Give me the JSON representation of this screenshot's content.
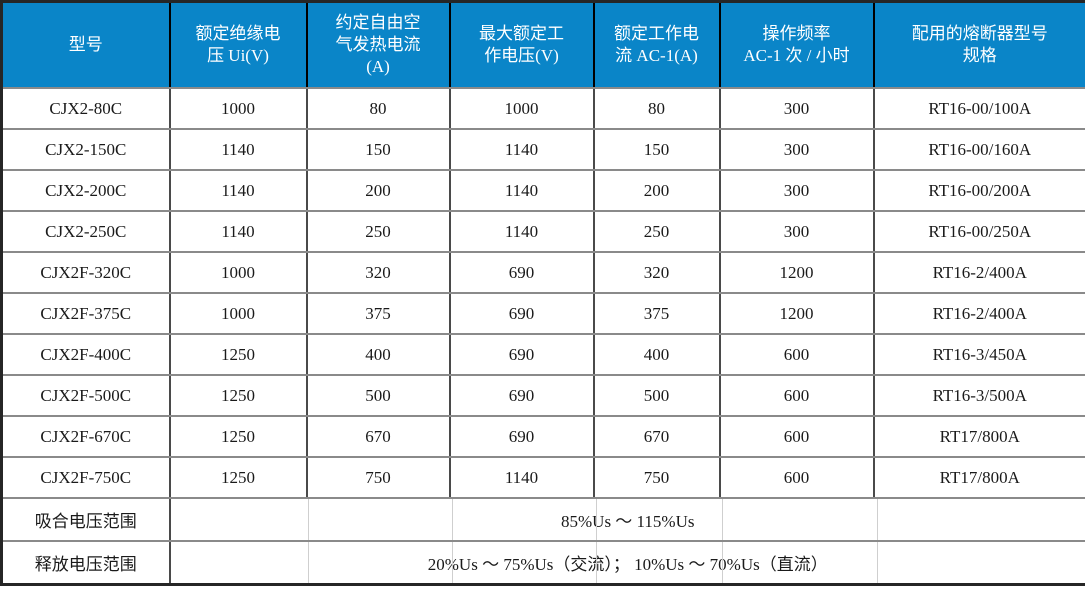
{
  "table": {
    "colors": {
      "header_bg": "#0a85c8",
      "header_text": "#ffffff",
      "body_text": "#1a1a1a",
      "grid_horizontal": "#8a8a8a",
      "grid_vertical": "#4a4a4a",
      "header_grid": "#000000",
      "outer_border": "#262626",
      "faint_divider": "#cfcfcf",
      "row_bg": "#ffffff"
    },
    "headers": [
      "型号",
      "额定绝缘电\n压 Ui(V)",
      "约定自由空\n气发热电流\n(A)",
      "最大额定工\n作电压(V)",
      "额定工作电\n流 AC-1(A)",
      "操作频率\nAC-1 次 / 小时",
      "配用的熔断器型号\n规格"
    ],
    "rows": [
      [
        "CJX2-80C",
        "1000",
        "80",
        "1000",
        "80",
        "300",
        "RT16-00/100A"
      ],
      [
        "CJX2-150C",
        "1140",
        "150",
        "1140",
        "150",
        "300",
        "RT16-00/160A"
      ],
      [
        "CJX2-200C",
        "1140",
        "200",
        "1140",
        "200",
        "300",
        "RT16-00/200A"
      ],
      [
        "CJX2-250C",
        "1140",
        "250",
        "1140",
        "250",
        "300",
        "RT16-00/250A"
      ],
      [
        "CJX2F-320C",
        "1000",
        "320",
        "690",
        "320",
        "1200",
        "RT16-2/400A"
      ],
      [
        "CJX2F-375C",
        "1000",
        "375",
        "690",
        "375",
        "1200",
        "RT16-2/400A"
      ],
      [
        "CJX2F-400C",
        "1250",
        "400",
        "690",
        "400",
        "600",
        "RT16-3/450A"
      ],
      [
        "CJX2F-500C",
        "1250",
        "500",
        "690",
        "500",
        "600",
        "RT16-3/500A"
      ],
      [
        "CJX2F-670C",
        "1250",
        "670",
        "690",
        "670",
        "600",
        "RT17/800A"
      ],
      [
        "CJX2F-750C",
        "1250",
        "750",
        "1140",
        "750",
        "600",
        "RT17/800A"
      ]
    ],
    "footer_rows": [
      {
        "label": "吸合电压范围",
        "value": "85%Us ～ 115%Us"
      },
      {
        "label": "释放电压范围",
        "value": "20%Us ～ 75%Us（交流）； 10%Us ～ 70%Us（直流）"
      }
    ]
  }
}
